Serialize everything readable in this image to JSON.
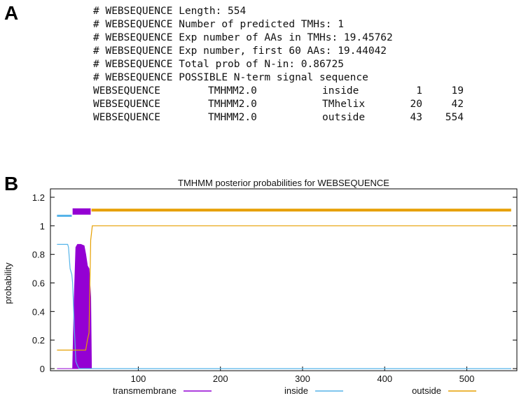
{
  "panel_a": {
    "label": "A",
    "lines": [
      "# WEBSEQUENCE Length: 554",
      "# WEBSEQUENCE Number of predicted TMHs:  1",
      "# WEBSEQUENCE Exp number of AAs in TMHs: 19.45762",
      "# WEBSEQUENCE Exp number, first 60 AAs:  19.44042",
      "# WEBSEQUENCE Total prob of N-in:        0.86725",
      "# WEBSEQUENCE POSSIBLE N-term signal sequence"
    ],
    "rows": [
      [
        "WEBSEQUENCE",
        "TMHMM2.0",
        "inside",
        1,
        19
      ],
      [
        "WEBSEQUENCE",
        "TMHMM2.0",
        "TMhelix",
        20,
        42
      ],
      [
        "WEBSEQUENCE",
        "TMHMM2.0",
        "outside",
        43,
        554
      ]
    ]
  },
  "panel_b": {
    "label": "B"
  },
  "chart_data": {
    "type": "line",
    "title": "TMHMM posterior probabilities for WEBSEQUENCE",
    "y_label": "probability",
    "xlim": [
      -7,
      561
    ],
    "ylim": [
      0,
      1.2
    ],
    "xticks": [
      100,
      200,
      300,
      400,
      500
    ],
    "yticks": [
      0,
      0.2,
      0.4,
      0.6,
      0.8,
      1,
      1.2
    ],
    "series": [
      {
        "name": "transmembrane",
        "color": "#9400d3",
        "fill": true,
        "x": [
          1,
          20,
          22,
          24,
          26,
          30,
          34,
          36,
          38,
          40,
          42,
          43,
          554
        ],
        "y": [
          0,
          0,
          0.5,
          0.85,
          0.87,
          0.87,
          0.86,
          0.8,
          0.72,
          0.7,
          0.5,
          0,
          0
        ]
      },
      {
        "name": "inside",
        "color": "#56b4e9",
        "x": [
          1,
          14,
          15,
          17,
          19,
          20,
          22,
          24,
          26,
          28,
          554
        ],
        "y": [
          0.87,
          0.87,
          0.85,
          0.7,
          0.66,
          0.6,
          0.3,
          0.05,
          0.02,
          0,
          0
        ]
      },
      {
        "name": "outside",
        "color": "#e69f00",
        "x": [
          1,
          36,
          38,
          40,
          42,
          44,
          554
        ],
        "y": [
          0.13,
          0.13,
          0.2,
          0.25,
          0.9,
          1,
          1
        ]
      }
    ],
    "topology": [
      {
        "start": 1,
        "end": 19,
        "level": 1.07,
        "color": "#56b4e9",
        "width": 3
      },
      {
        "start": 20,
        "end": 42,
        "level": 1.1,
        "color": "#9400d3",
        "width": 9
      },
      {
        "start": 43,
        "end": 554,
        "level": 1.11,
        "color": "#e69f00",
        "width": 4
      }
    ]
  }
}
